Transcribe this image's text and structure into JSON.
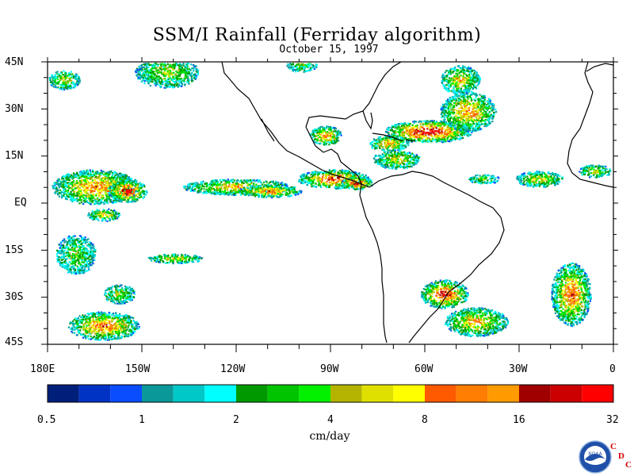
{
  "title": "SSM/I Rainfall (Ferriday algorithm)",
  "subtitle": "October 15, 1997",
  "map": {
    "lon_range": [
      180,
      360
    ],
    "lat_range": [
      -45,
      45
    ],
    "lat_labels": [
      "45N",
      "30N",
      "15N",
      "EQ",
      "15S",
      "30S",
      "45S"
    ],
    "lon_labels": [
      "180E",
      "150W",
      "120W",
      "90W",
      "60W",
      "30W",
      "0"
    ],
    "land_color": "#000000",
    "background": "#ffffff"
  },
  "colorbar": {
    "colors": [
      "#001f7a",
      "#0033c4",
      "#0a4dff",
      "#0a9898",
      "#00c8c8",
      "#00ffff",
      "#009900",
      "#00c400",
      "#00f000",
      "#b4b400",
      "#e0e000",
      "#ffff00",
      "#ff5a00",
      "#ff7d00",
      "#ff9b00",
      "#a00000",
      "#cc0000",
      "#ff0000"
    ],
    "tick_labels": [
      "0.5",
      "1",
      "2",
      "4",
      "8",
      "16",
      "32"
    ],
    "units": "cm/day"
  },
  "logo": {
    "icon": "noaa-logo-icon",
    "text": "NOAA",
    "cdc": [
      "C",
      "D",
      "C"
    ]
  }
}
